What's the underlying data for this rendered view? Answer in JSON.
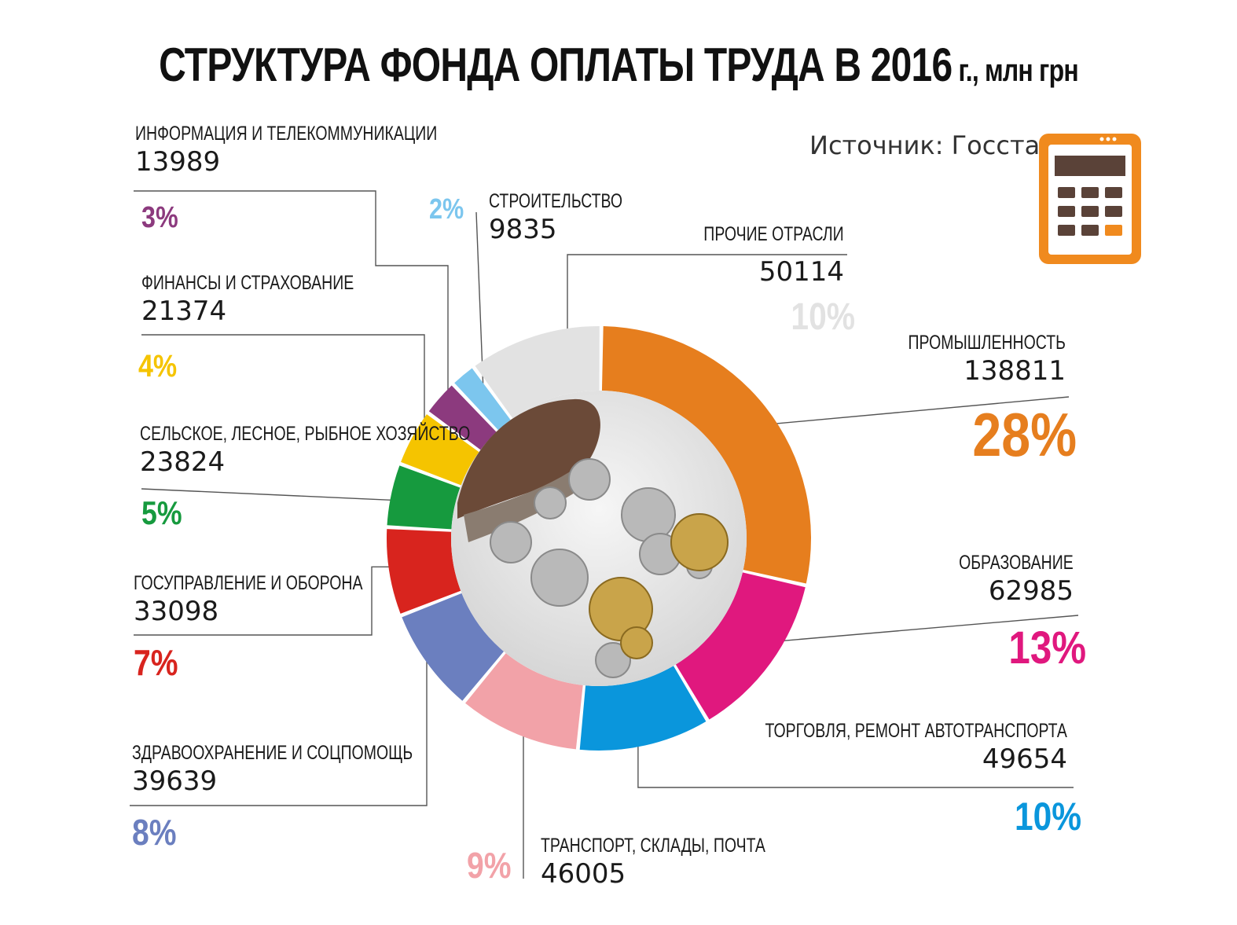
{
  "title": {
    "main": "СТРУКТУРА ФОНДА ОПЛАТЫ ТРУДА В 2016",
    "suffix": " г., млн грн"
  },
  "source": "Источник: Госстат",
  "colors": {
    "industry": "#e67e1e",
    "education": "#e0187e",
    "trade": "#0a96dc",
    "transport": "#f2a2a8",
    "health": "#6b7fbf",
    "government": "#d8241e",
    "agriculture": "#169a3e",
    "finance": "#f5c400",
    "it": "#8c3a7e",
    "construction": "#7cc6ee",
    "other": "#e2e2e2",
    "calculator": "#f08a1e"
  },
  "chart_data": {
    "type": "pie",
    "title": "СТРУКТУРА ФОНДА ОПЛАТЫ ТРУДА В 2016 г., млн грн",
    "series": [
      {
        "key": "industry",
        "name": "ПРОМЫШЛЕННОСТЬ",
        "value": 138811,
        "pct": "28%"
      },
      {
        "key": "education",
        "name": "ОБРАЗОВАНИЕ",
        "value": 62985,
        "pct": "13%"
      },
      {
        "key": "trade",
        "name": "ТОРГОВЛЯ, РЕМОНТ АВТОТРАНСПОРТА",
        "value": 49654,
        "pct": "10%"
      },
      {
        "key": "transport",
        "name": "ТРАНСПОРТ, СКЛАДЫ, ПОЧТА",
        "value": 46005,
        "pct": "9%"
      },
      {
        "key": "health",
        "name": "ЗДРАВООХРАНЕНИЕ И СОЦПОМОЩЬ",
        "value": 39639,
        "pct": "8%"
      },
      {
        "key": "government",
        "name": "ГОСУПРАВЛЕНИЕ И ОБОРОНА",
        "value": 33098,
        "pct": "7%"
      },
      {
        "key": "agriculture",
        "name": "СЕЛЬСКОЕ, ЛЕСНОЕ, РЫБНОЕ ХОЗЯЙСТВО",
        "value": 23824,
        "pct": "5%"
      },
      {
        "key": "finance",
        "name": "ФИНАНСЫ И СТРАХОВАНИЕ",
        "value": 21374,
        "pct": "4%"
      },
      {
        "key": "it",
        "name": "ИНФОРМАЦИЯ И ТЕЛЕКОММУНИКАЦИИ",
        "value": 13989,
        "pct": "3%"
      },
      {
        "key": "construction",
        "name": "СТРОИТЕЛЬСТВО",
        "value": 9835,
        "pct": "2%"
      },
      {
        "key": "other",
        "name": "ПРОЧИЕ ОТРАСЛИ",
        "value": 50114,
        "pct": "10%"
      }
    ]
  }
}
